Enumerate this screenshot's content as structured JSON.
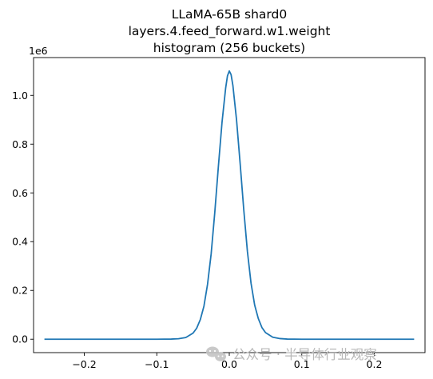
{
  "chart_data": {
    "type": "line",
    "title_lines": [
      "LLaMA-65B shard0",
      "layers.4.feed_forward.w1.weight",
      "histogram (256 buckets)"
    ],
    "xlabel": "",
    "ylabel": "",
    "xlim": [
      -0.27,
      0.27
    ],
    "ylim": [
      -0.055,
      1.155
    ],
    "y_offset_label": "1e6",
    "x_ticks": [
      {
        "value": -0.2,
        "label": "−0.2"
      },
      {
        "value": -0.1,
        "label": "−0.1"
      },
      {
        "value": 0.0,
        "label": "0.0"
      },
      {
        "value": 0.1,
        "label": "0.1"
      },
      {
        "value": 0.2,
        "label": "0.2"
      }
    ],
    "y_ticks": [
      {
        "value": 0.0,
        "label": "0.0"
      },
      {
        "value": 0.2,
        "label": "0.2"
      },
      {
        "value": 0.4,
        "label": "0.4"
      },
      {
        "value": 0.6,
        "label": "0.6"
      },
      {
        "value": 0.8,
        "label": "0.8"
      },
      {
        "value": 1.0,
        "label": "1.0"
      }
    ],
    "series": [
      {
        "color": "#1f77b4",
        "x": [
          -0.255,
          -0.2,
          -0.15,
          -0.1,
          -0.08,
          -0.07,
          -0.06,
          -0.05,
          -0.045,
          -0.04,
          -0.035,
          -0.03,
          -0.025,
          -0.02,
          -0.015,
          -0.01,
          -0.005,
          -0.0025,
          0.0,
          0.0025,
          0.005,
          0.01,
          0.015,
          0.02,
          0.025,
          0.03,
          0.035,
          0.04,
          0.045,
          0.05,
          0.06,
          0.07,
          0.08,
          0.1,
          0.15,
          0.2,
          0.255
        ],
        "y": [
          0.0,
          0.0,
          0.0,
          0.0,
          0.0005,
          0.002,
          0.007,
          0.025,
          0.045,
          0.08,
          0.135,
          0.225,
          0.35,
          0.52,
          0.71,
          0.89,
          1.03,
          1.08,
          1.1,
          1.085,
          1.04,
          0.9,
          0.72,
          0.53,
          0.36,
          0.23,
          0.14,
          0.085,
          0.048,
          0.027,
          0.008,
          0.0025,
          0.0006,
          0.0,
          0.0,
          0.0,
          0.0
        ]
      }
    ]
  },
  "watermark": {
    "icon": "wechat-icon",
    "text": "公众号 · 半导体行业观察"
  }
}
